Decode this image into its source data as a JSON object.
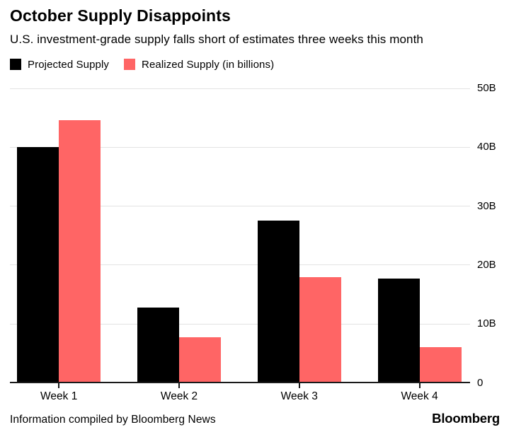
{
  "header": {
    "title": "October Supply Disappoints",
    "subtitle": "U.S. investment-grade supply falls short of estimates three weeks this month"
  },
  "legend": [
    {
      "label": "Projected Supply",
      "color": "#000000"
    },
    {
      "label": "Realized Supply (in billions)",
      "color": "#ff6565"
    }
  ],
  "chart_data": {
    "type": "bar",
    "categories": [
      "Week 1",
      "Week 2",
      "Week 3",
      "Week 4"
    ],
    "series": [
      {
        "name": "Projected Supply",
        "color": "#000000",
        "values": [
          40.0,
          12.8,
          27.6,
          17.7
        ]
      },
      {
        "name": "Realized Supply",
        "color": "#ff6565",
        "values": [
          44.6,
          7.7,
          17.9,
          6.1
        ]
      }
    ],
    "unit": "billions USD",
    "ylim": [
      0,
      50
    ],
    "yticks": [
      0,
      10,
      20,
      30,
      40,
      50
    ],
    "ytick_labels": [
      "0",
      "10B",
      "20B",
      "30B",
      "40B",
      "50B"
    ],
    "grid": true,
    "grid_color": "#e3e3e3",
    "axis_color": "#1a1a1a",
    "legend_position": "top",
    "y_axis_side": "right",
    "title": "October Supply Disappoints",
    "xlabel": "",
    "ylabel": ""
  },
  "footer": {
    "source": "Information compiled by Bloomberg News",
    "brand": "Bloomberg"
  }
}
